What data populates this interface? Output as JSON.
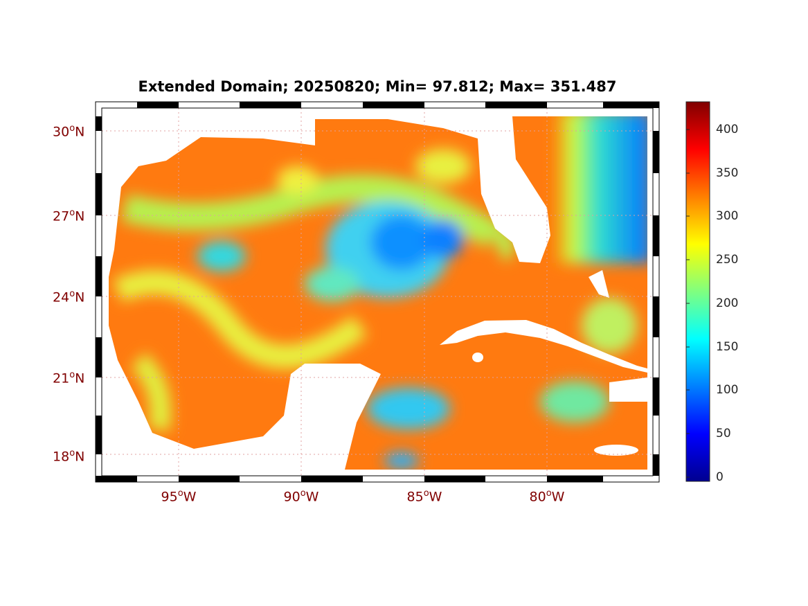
{
  "title": "Extended Domain; 20250820; Min= 97.812; Max= 351.487",
  "map": {
    "date": "20250820",
    "min": 97.812,
    "max": 351.487,
    "lat_labels": [
      {
        "deg": "30",
        "hem": "N"
      },
      {
        "deg": "27",
        "hem": "N"
      },
      {
        "deg": "24",
        "hem": "N"
      },
      {
        "deg": "21",
        "hem": "N"
      },
      {
        "deg": "18",
        "hem": "N"
      }
    ],
    "lon_labels": [
      {
        "deg": "95",
        "hem": "W"
      },
      {
        "deg": "90",
        "hem": "W"
      },
      {
        "deg": "85",
        "hem": "W"
      },
      {
        "deg": "80",
        "hem": "W"
      }
    ],
    "degree_symbol": "o"
  },
  "colorbar": {
    "colormap": "jet",
    "range": [
      0,
      432
    ],
    "ticks": [
      "0",
      "50",
      "100",
      "150",
      "200",
      "250",
      "300",
      "350",
      "400"
    ]
  }
}
